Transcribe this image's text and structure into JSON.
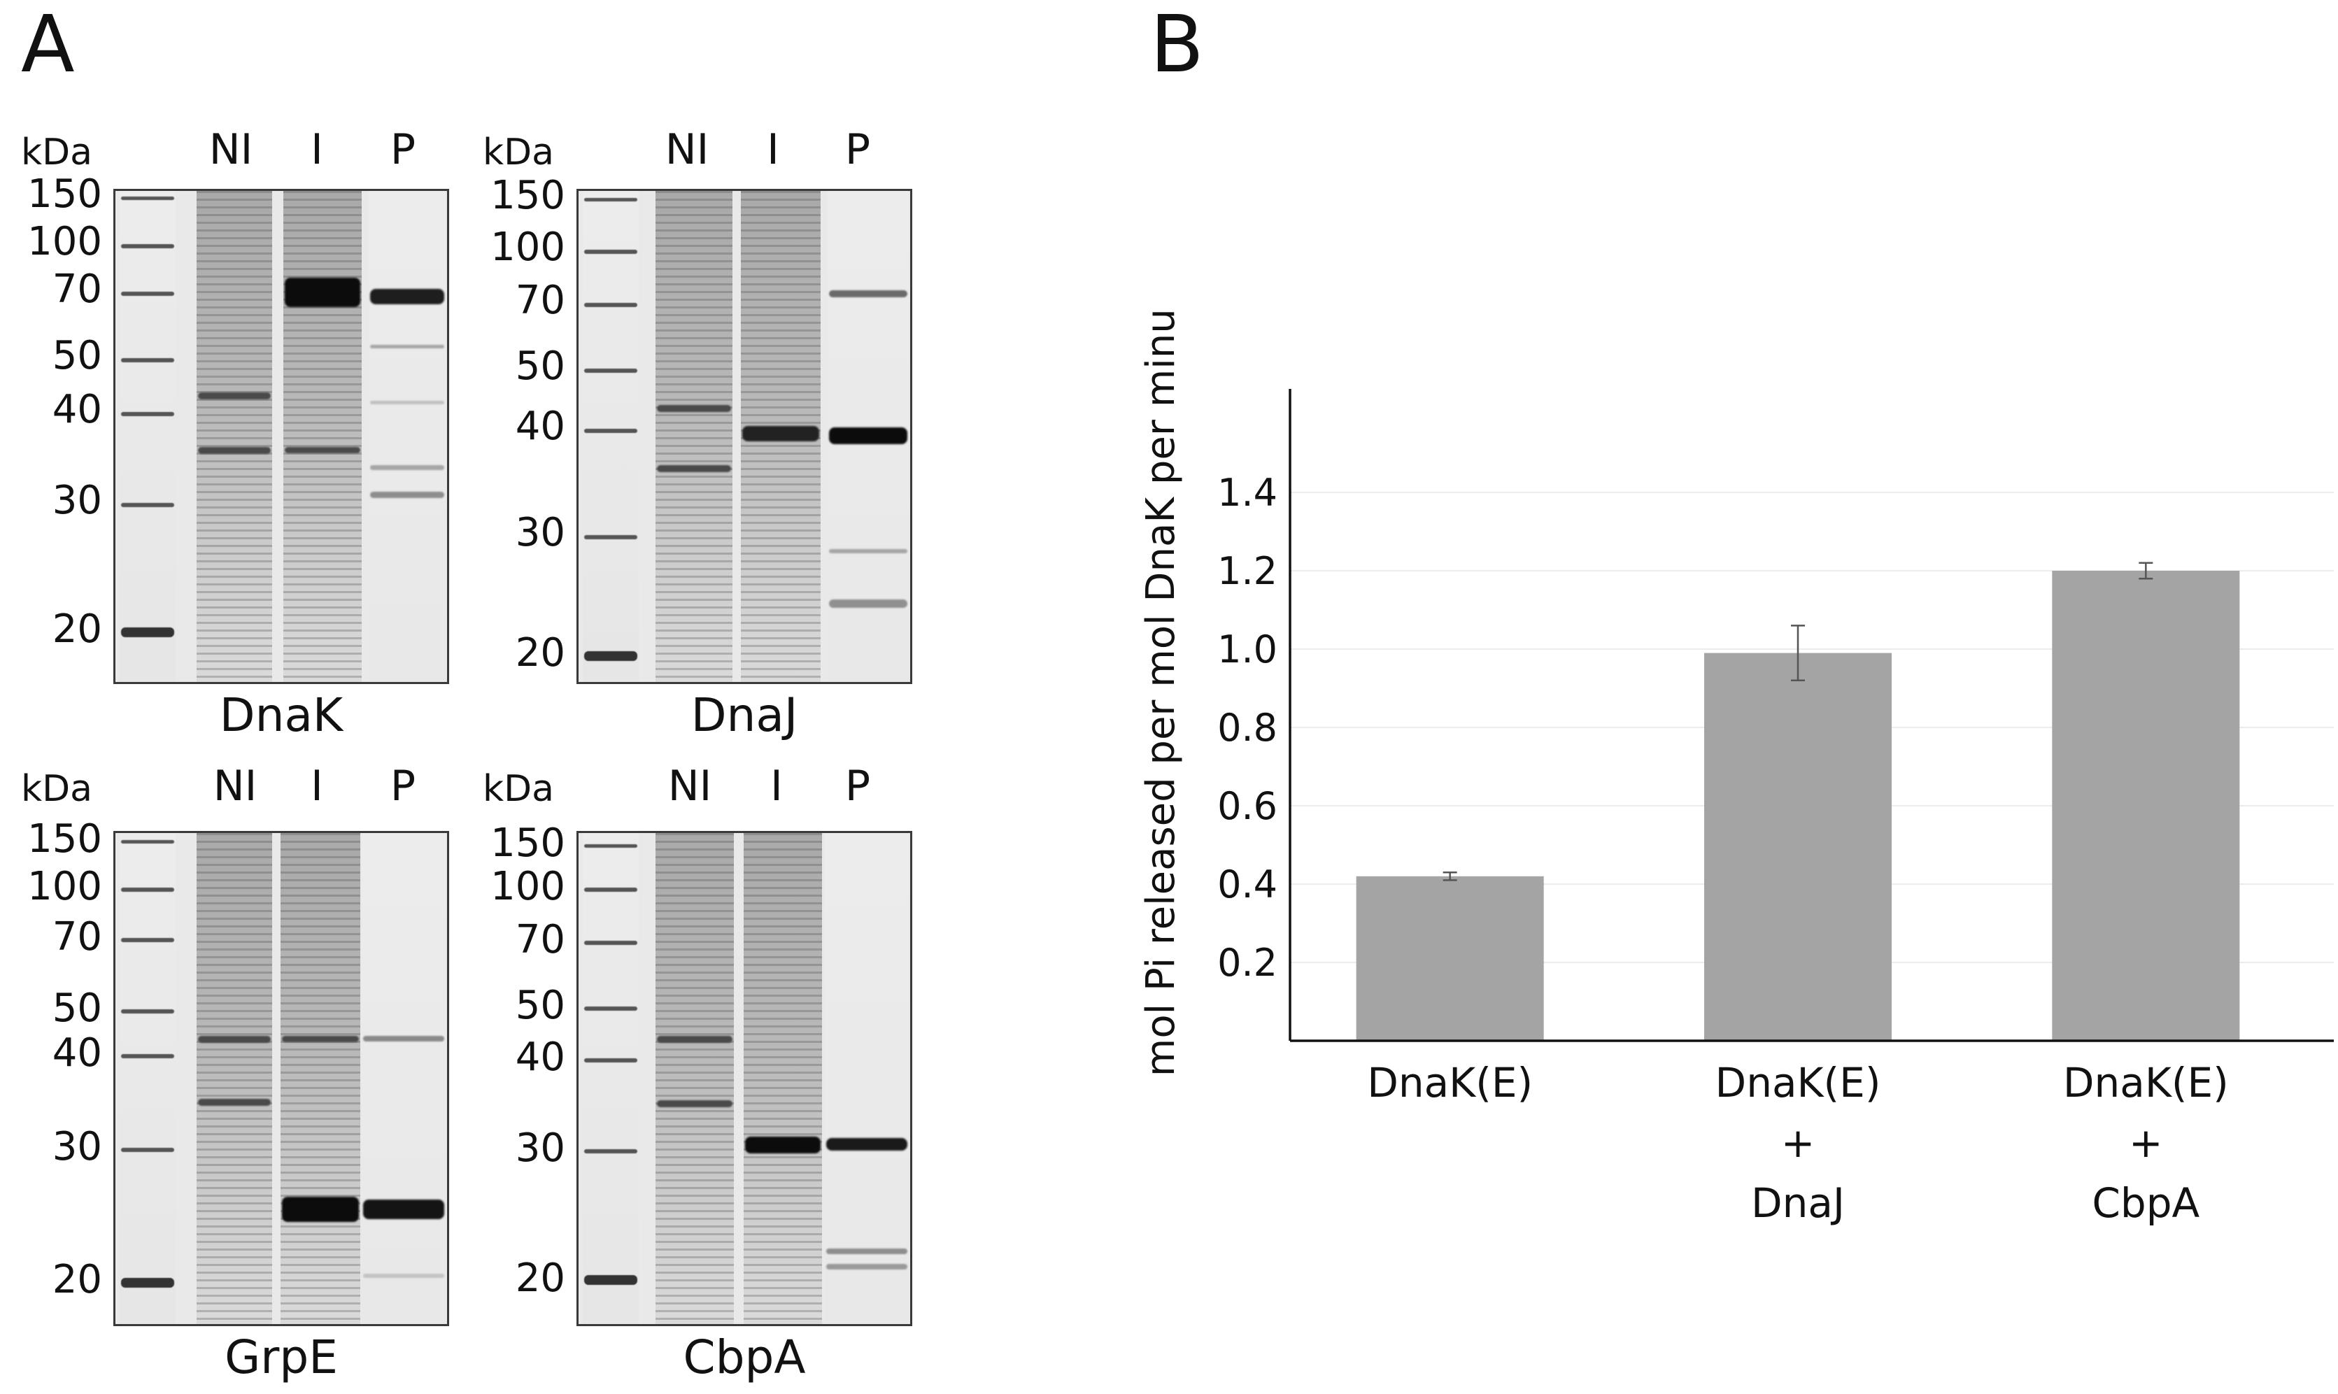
{
  "panels": {
    "a": "A",
    "b": "B"
  },
  "gel_common": {
    "kda_label": "kDa",
    "lanes": [
      "NI",
      "I",
      "P"
    ]
  },
  "gels": [
    {
      "name": "DnaK",
      "markers": [
        "150",
        "100",
        "70",
        "50",
        "40",
        "30",
        "20"
      ]
    },
    {
      "name": "DnaJ",
      "markers": [
        "150",
        "100",
        "70",
        "50",
        "40",
        "30",
        "20"
      ]
    },
    {
      "name": "GrpE",
      "markers": [
        "150",
        "100",
        "70",
        "50",
        "40",
        "30",
        "20"
      ]
    },
    {
      "name": "CbpA",
      "markers": [
        "150",
        "100",
        "70",
        "50",
        "40",
        "30",
        "20"
      ]
    }
  ],
  "chart_data": {
    "type": "bar",
    "title": "",
    "xlabel": "",
    "ylabel": "mol Pi released per mol DnaK per minute",
    "categories": [
      [
        "DnaK(E)"
      ],
      [
        "DnaK(E)",
        "+",
        "DnaJ"
      ],
      [
        "DnaK(E)",
        "+",
        "CbpA"
      ]
    ],
    "values": [
      0.42,
      0.99,
      1.2
    ],
    "errors": [
      0.01,
      0.07,
      0.02
    ],
    "ylim": [
      0,
      1.45
    ],
    "yticks": [
      "0.2",
      "0.4",
      "0.6",
      "0.8",
      "1.0",
      "1.2",
      "1.4"
    ],
    "bar_color": "#a4a4a4",
    "grid": true
  }
}
